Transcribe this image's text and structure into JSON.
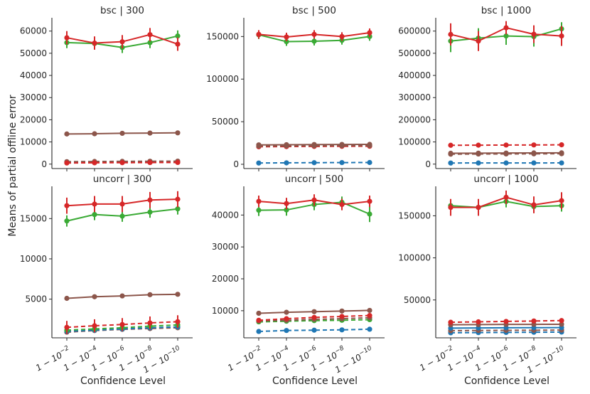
{
  "figure": {
    "ylabel": "Means of partial offline error",
    "xlabel": "Confidence Level",
    "x_tick_labels": [
      "1 − 10⁻²",
      "1 − 10⁻⁴",
      "1 − 10⁻⁶",
      "1 − 10⁻⁸",
      "1 − 10⁻¹⁰"
    ]
  },
  "colors": {
    "blue": "#1f77b4",
    "green": "#3aaa35",
    "red": "#d62728",
    "brown": "#8c564b",
    "axis": "#262626"
  },
  "chart_data": [
    {
      "type": "line",
      "title": "bsc | 300",
      "ylim": [
        -2000,
        66000
      ],
      "yticks": [
        0,
        10000,
        20000,
        30000,
        40000,
        50000,
        60000
      ],
      "categories": [
        "1 − 10⁻²",
        "1 − 10⁻⁴",
        "1 − 10⁻⁶",
        "1 − 10⁻⁸",
        "1 − 10⁻¹⁰"
      ],
      "series": [
        {
          "name": "blue-dashed",
          "color": "blue",
          "dashed": true,
          "values": [
            700,
            750,
            800,
            850,
            900
          ],
          "err": [
            0,
            0,
            0,
            0,
            0
          ]
        },
        {
          "name": "brown-dashed",
          "color": "brown",
          "dashed": true,
          "values": [
            1100,
            1200,
            1250,
            1300,
            1350
          ],
          "err": [
            0,
            0,
            0,
            0,
            0
          ]
        },
        {
          "name": "red-dashed",
          "color": "red",
          "dashed": true,
          "values": [
            500,
            600,
            650,
            700,
            750
          ],
          "err": [
            0,
            0,
            0,
            0,
            0
          ]
        },
        {
          "name": "brown-solid",
          "color": "brown",
          "dashed": false,
          "values": [
            13600,
            13700,
            13900,
            14000,
            14100
          ],
          "err": [
            0,
            0,
            0,
            0,
            0
          ]
        },
        {
          "name": "green-solid",
          "color": "green",
          "dashed": false,
          "values": [
            54800,
            54400,
            52600,
            54800,
            57800
          ],
          "err": [
            2500,
            2500,
            2500,
            2500,
            2500
          ]
        },
        {
          "name": "red-solid",
          "color": "red",
          "dashed": false,
          "values": [
            57000,
            54600,
            55200,
            58400,
            54100
          ],
          "err": [
            3000,
            3000,
            3000,
            3000,
            3000
          ]
        }
      ]
    },
    {
      "type": "line",
      "title": "bsc | 500",
      "ylim": [
        -5000,
        172000
      ],
      "yticks": [
        0,
        50000,
        100000,
        150000
      ],
      "categories": [
        "1 − 10⁻²",
        "1 − 10⁻⁴",
        "1 − 10⁻⁶",
        "1 − 10⁻⁸",
        "1 − 10⁻¹⁰"
      ],
      "series": [
        {
          "name": "blue-dashed",
          "color": "blue",
          "dashed": true,
          "values": [
            1500,
            1700,
            1900,
            2000,
            2100
          ],
          "err": [
            0,
            0,
            0,
            0,
            0
          ]
        },
        {
          "name": "red-dashed",
          "color": "red",
          "dashed": true,
          "values": [
            20600,
            20800,
            21000,
            21100,
            21200
          ],
          "err": [
            0,
            0,
            0,
            0,
            0
          ]
        },
        {
          "name": "brown-dashed",
          "color": "brown",
          "dashed": true,
          "values": [
            21400,
            21600,
            21800,
            21900,
            22000
          ],
          "err": [
            0,
            0,
            0,
            0,
            0
          ]
        },
        {
          "name": "brown-solid",
          "color": "brown",
          "dashed": false,
          "values": [
            22800,
            23000,
            23200,
            23300,
            23400
          ],
          "err": [
            0,
            0,
            0,
            0,
            0
          ]
        },
        {
          "name": "green-solid",
          "color": "green",
          "dashed": false,
          "values": [
            152000,
            144000,
            144500,
            145500,
            150000
          ],
          "err": [
            5000,
            5000,
            5000,
            5000,
            5000
          ]
        },
        {
          "name": "red-solid",
          "color": "red",
          "dashed": false,
          "values": [
            152500,
            149500,
            152500,
            150000,
            154500
          ],
          "err": [
            5000,
            5000,
            5000,
            5000,
            5000
          ]
        }
      ]
    },
    {
      "type": "line",
      "title": "bsc | 1000",
      "ylim": [
        -20000,
        660000
      ],
      "yticks": [
        0,
        100000,
        200000,
        300000,
        400000,
        500000,
        600000
      ],
      "categories": [
        "1 − 10⁻²",
        "1 − 10⁻⁴",
        "1 − 10⁻⁶",
        "1 − 10⁻⁸",
        "1 − 10⁻¹⁰"
      ],
      "series": [
        {
          "name": "blue-dashed",
          "color": "blue",
          "dashed": true,
          "values": [
            5000,
            5200,
            5300,
            5400,
            5500
          ],
          "err": [
            0,
            0,
            0,
            0,
            0
          ]
        },
        {
          "name": "brown-dashed",
          "color": "brown",
          "dashed": true,
          "values": [
            45000,
            45500,
            46000,
            46500,
            47000
          ],
          "err": [
            0,
            0,
            0,
            0,
            0
          ]
        },
        {
          "name": "brown-solid",
          "color": "brown",
          "dashed": false,
          "values": [
            49000,
            49500,
            50000,
            50500,
            51000
          ],
          "err": [
            0,
            0,
            0,
            0,
            0
          ]
        },
        {
          "name": "red-dashed",
          "color": "red",
          "dashed": true,
          "values": [
            85000,
            85500,
            86000,
            86500,
            87000
          ],
          "err": [
            0,
            0,
            0,
            0,
            0
          ]
        },
        {
          "name": "green-solid",
          "color": "green",
          "dashed": false,
          "values": [
            555000,
            568000,
            578000,
            575000,
            610000
          ],
          "err": [
            50000,
            45000,
            40000,
            45000,
            30000
          ]
        },
        {
          "name": "red-solid",
          "color": "red",
          "dashed": false,
          "values": [
            585000,
            555000,
            615000,
            586000,
            578000
          ],
          "err": [
            50000,
            45000,
            30000,
            40000,
            45000
          ]
        }
      ]
    },
    {
      "type": "line",
      "title": "uncorr | 300",
      "ylim": [
        200,
        19000
      ],
      "yticks": [
        5000,
        10000,
        15000
      ],
      "categories": [
        "1 − 10⁻²",
        "1 − 10⁻⁴",
        "1 − 10⁻⁶",
        "1 − 10⁻⁸",
        "1 − 10⁻¹⁰"
      ],
      "series": [
        {
          "name": "brown-dashed",
          "color": "brown",
          "dashed": true,
          "values": [
            900,
            1100,
            1250,
            1350,
            1450
          ],
          "err": [
            0,
            0,
            0,
            0,
            0
          ]
        },
        {
          "name": "blue-dashed",
          "color": "blue",
          "dashed": true,
          "values": [
            1000,
            1150,
            1300,
            1450,
            1550
          ],
          "err": [
            0,
            0,
            0,
            0,
            0
          ]
        },
        {
          "name": "green-dashed",
          "color": "green",
          "dashed": true,
          "values": [
            1150,
            1300,
            1450,
            1650,
            1800
          ],
          "err": [
            0,
            0,
            0,
            0,
            0
          ]
        },
        {
          "name": "red-dashed",
          "color": "red",
          "dashed": true,
          "values": [
            1500,
            1700,
            1850,
            2050,
            2200
          ],
          "err": [
            800,
            800,
            800,
            800,
            800
          ]
        },
        {
          "name": "brown-solid",
          "color": "brown",
          "dashed": false,
          "values": [
            5100,
            5300,
            5400,
            5550,
            5600
          ],
          "err": [
            0,
            0,
            0,
            0,
            0
          ]
        },
        {
          "name": "green-solid",
          "color": "green",
          "dashed": false,
          "values": [
            14700,
            15500,
            15300,
            15800,
            16200
          ],
          "err": [
            700,
            700,
            700,
            700,
            700
          ]
        },
        {
          "name": "red-solid",
          "color": "red",
          "dashed": false,
          "values": [
            16600,
            16800,
            16800,
            17300,
            17400
          ],
          "err": [
            1000,
            1000,
            1000,
            1000,
            1000
          ]
        }
      ]
    },
    {
      "type": "line",
      "title": "uncorr | 500",
      "ylim": [
        1500,
        49000
      ],
      "yticks": [
        10000,
        20000,
        30000,
        40000
      ],
      "categories": [
        "1 − 10⁻²",
        "1 − 10⁻⁴",
        "1 − 10⁻⁶",
        "1 − 10⁻⁸",
        "1 − 10⁻¹⁰"
      ],
      "series": [
        {
          "name": "blue-dashed",
          "color": "blue",
          "dashed": true,
          "values": [
            3500,
            3800,
            3900,
            4000,
            4200
          ],
          "err": [
            0,
            0,
            0,
            0,
            0
          ]
        },
        {
          "name": "green-dashed",
          "color": "green",
          "dashed": true,
          "values": [
            6500,
            6700,
            6900,
            7000,
            7200
          ],
          "err": [
            0,
            0,
            0,
            0,
            0
          ]
        },
        {
          "name": "brown-dashed",
          "color": "brown",
          "dashed": true,
          "values": [
            6800,
            7000,
            7300,
            7500,
            7800
          ],
          "err": [
            0,
            0,
            0,
            0,
            0
          ]
        },
        {
          "name": "red-dashed",
          "color": "red",
          "dashed": true,
          "values": [
            7000,
            7500,
            7900,
            8200,
            8500
          ],
          "err": [
            0,
            0,
            0,
            0,
            0
          ]
        },
        {
          "name": "brown-solid",
          "color": "brown",
          "dashed": false,
          "values": [
            9200,
            9500,
            9700,
            9900,
            10100
          ],
          "err": [
            0,
            0,
            0,
            0,
            0
          ]
        },
        {
          "name": "green-solid",
          "color": "green",
          "dashed": false,
          "values": [
            41500,
            41600,
            43300,
            44000,
            40300
          ],
          "err": [
            1800,
            1800,
            1800,
            1800,
            2500
          ]
        },
        {
          "name": "red-solid",
          "color": "red",
          "dashed": false,
          "values": [
            44300,
            43600,
            44700,
            43300,
            44300
          ],
          "err": [
            1800,
            1800,
            1800,
            1800,
            1800
          ]
        }
      ]
    },
    {
      "type": "line",
      "title": "uncorr | 1000",
      "ylim": [
        5000,
        185000
      ],
      "yticks": [
        50000,
        100000,
        150000
      ],
      "categories": [
        "1 − 10⁻²",
        "1 − 10⁻⁴",
        "1 − 10⁻⁶",
        "1 − 10⁻⁸",
        "1 − 10⁻¹⁰"
      ],
      "series": [
        {
          "name": "blue-dashed",
          "color": "blue",
          "dashed": true,
          "values": [
            11000,
            11200,
            11400,
            11600,
            11800
          ],
          "err": [
            0,
            0,
            0,
            0,
            0
          ]
        },
        {
          "name": "brown-dashed",
          "color": "brown",
          "dashed": true,
          "values": [
            13500,
            13700,
            13900,
            14000,
            14200
          ],
          "err": [
            0,
            0,
            0,
            0,
            0
          ]
        },
        {
          "name": "blue-solid",
          "color": "blue",
          "dashed": false,
          "values": [
            16500,
            16700,
            16900,
            17000,
            17100
          ],
          "err": [
            0,
            0,
            0,
            0,
            0
          ]
        },
        {
          "name": "brown-solid",
          "color": "brown",
          "dashed": false,
          "values": [
            20500,
            20700,
            20900,
            21000,
            21100
          ],
          "err": [
            0,
            0,
            0,
            0,
            0
          ]
        },
        {
          "name": "red-dashed",
          "color": "red",
          "dashed": true,
          "values": [
            23500,
            24000,
            24500,
            25000,
            25500
          ],
          "err": [
            0,
            0,
            0,
            0,
            0
          ]
        },
        {
          "name": "green-solid",
          "color": "green",
          "dashed": false,
          "values": [
            162000,
            160000,
            167000,
            161000,
            162000
          ],
          "err": [
            7000,
            7000,
            7000,
            7000,
            7000
          ]
        },
        {
          "name": "red-solid",
          "color": "red",
          "dashed": false,
          "values": [
            160000,
            160000,
            172000,
            163000,
            168000
          ],
          "err": [
            10000,
            10000,
            8000,
            10000,
            10000
          ]
        }
      ]
    }
  ]
}
